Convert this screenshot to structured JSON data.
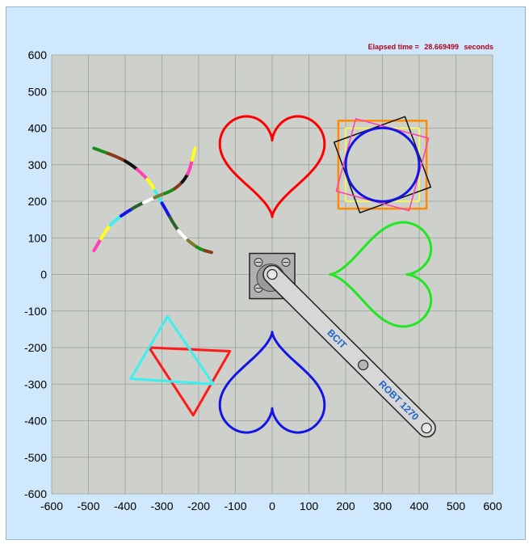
{
  "elapsed": {
    "label": "Elapsed time =",
    "value": "28.669499",
    "unit": "seconds"
  },
  "arm": {
    "label_1": "BCIT",
    "label_2": "ROBT 1270"
  },
  "colors": {
    "window_background": "#cfe8fb",
    "plot_background": "#cdd0cb",
    "grid": "#9aa09a",
    "elapsed_text": "#b2001c",
    "arm_text": "#1f63c6"
  },
  "chart_data": {
    "type": "scatter",
    "title": "",
    "xlabel": "",
    "ylabel": "",
    "xlim": [
      -600,
      600
    ],
    "ylim": [
      -600,
      600
    ],
    "grid": true,
    "x_ticks": [
      -600,
      -500,
      -400,
      -300,
      -200,
      -100,
      0,
      100,
      200,
      300,
      400,
      500,
      600
    ],
    "y_ticks": [
      -600,
      -500,
      -400,
      -300,
      -200,
      -100,
      0,
      100,
      200,
      300,
      400,
      500,
      600
    ],
    "shapes": [
      {
        "kind": "heart",
        "color": "#ff0000",
        "center": [
          0,
          300
        ],
        "size": 150,
        "rotation_deg": 0
      },
      {
        "kind": "heart",
        "color": "#1414e6",
        "center": [
          0,
          -300
        ],
        "size": 150,
        "rotation_deg": 180
      },
      {
        "kind": "heart",
        "color": "#22e622",
        "center": [
          300,
          0
        ],
        "size": 150,
        "rotation_deg": 90
      },
      {
        "kind": "square",
        "color": "#ff8c00",
        "center": [
          300,
          300
        ],
        "size": 240,
        "rotation_deg": 0
      },
      {
        "kind": "square",
        "color": "#ffff3c",
        "center": [
          300,
          300
        ],
        "size": 200,
        "rotation_deg": 0
      },
      {
        "kind": "square",
        "color": "#111111",
        "center": [
          300,
          300
        ],
        "size": 205,
        "rotation_deg": 20
      },
      {
        "kind": "square",
        "color": "#ff3fb4",
        "center": [
          300,
          300
        ],
        "size": 205,
        "rotation_deg": -15
      },
      {
        "kind": "circle",
        "color": "#1414e6",
        "center": [
          300,
          300
        ],
        "radius": 100
      },
      {
        "kind": "triangle",
        "color": "#ff1a1a",
        "points": [
          [
            -335,
            -200
          ],
          [
            -115,
            -210
          ],
          [
            -215,
            -385
          ]
        ]
      },
      {
        "kind": "triangle",
        "color": "#3cf0f0",
        "points": [
          [
            -285,
            -115
          ],
          [
            -385,
            -285
          ],
          [
            -160,
            -300
          ]
        ]
      }
    ],
    "x_curves": [
      {
        "points": [
          [
            -485,
            345
          ],
          [
            -400,
            310
          ],
          [
            -340,
            260
          ],
          [
            -300,
            195
          ],
          [
            -255,
            120
          ],
          [
            -205,
            75
          ],
          [
            -165,
            60
          ]
        ]
      },
      {
        "points": [
          [
            -485,
            65
          ],
          [
            -440,
            135
          ],
          [
            -380,
            180
          ],
          [
            -320,
            210
          ],
          [
            -265,
            235
          ],
          [
            -230,
            275
          ],
          [
            -210,
            345
          ]
        ]
      }
    ],
    "x_curve_colors": [
      "#1c8c1c",
      "#8b3a1a",
      "#111111",
      "#ff3fb4",
      "#ffff1a",
      "#3cf0f0",
      "#1414e6",
      "#2a5f2a",
      "#ffffff",
      "#7a7a2a"
    ],
    "arm_base": [
      0,
      0
    ],
    "arm_elbow": [
      250,
      -245
    ],
    "arm_tip": [
      420,
      -420
    ]
  }
}
